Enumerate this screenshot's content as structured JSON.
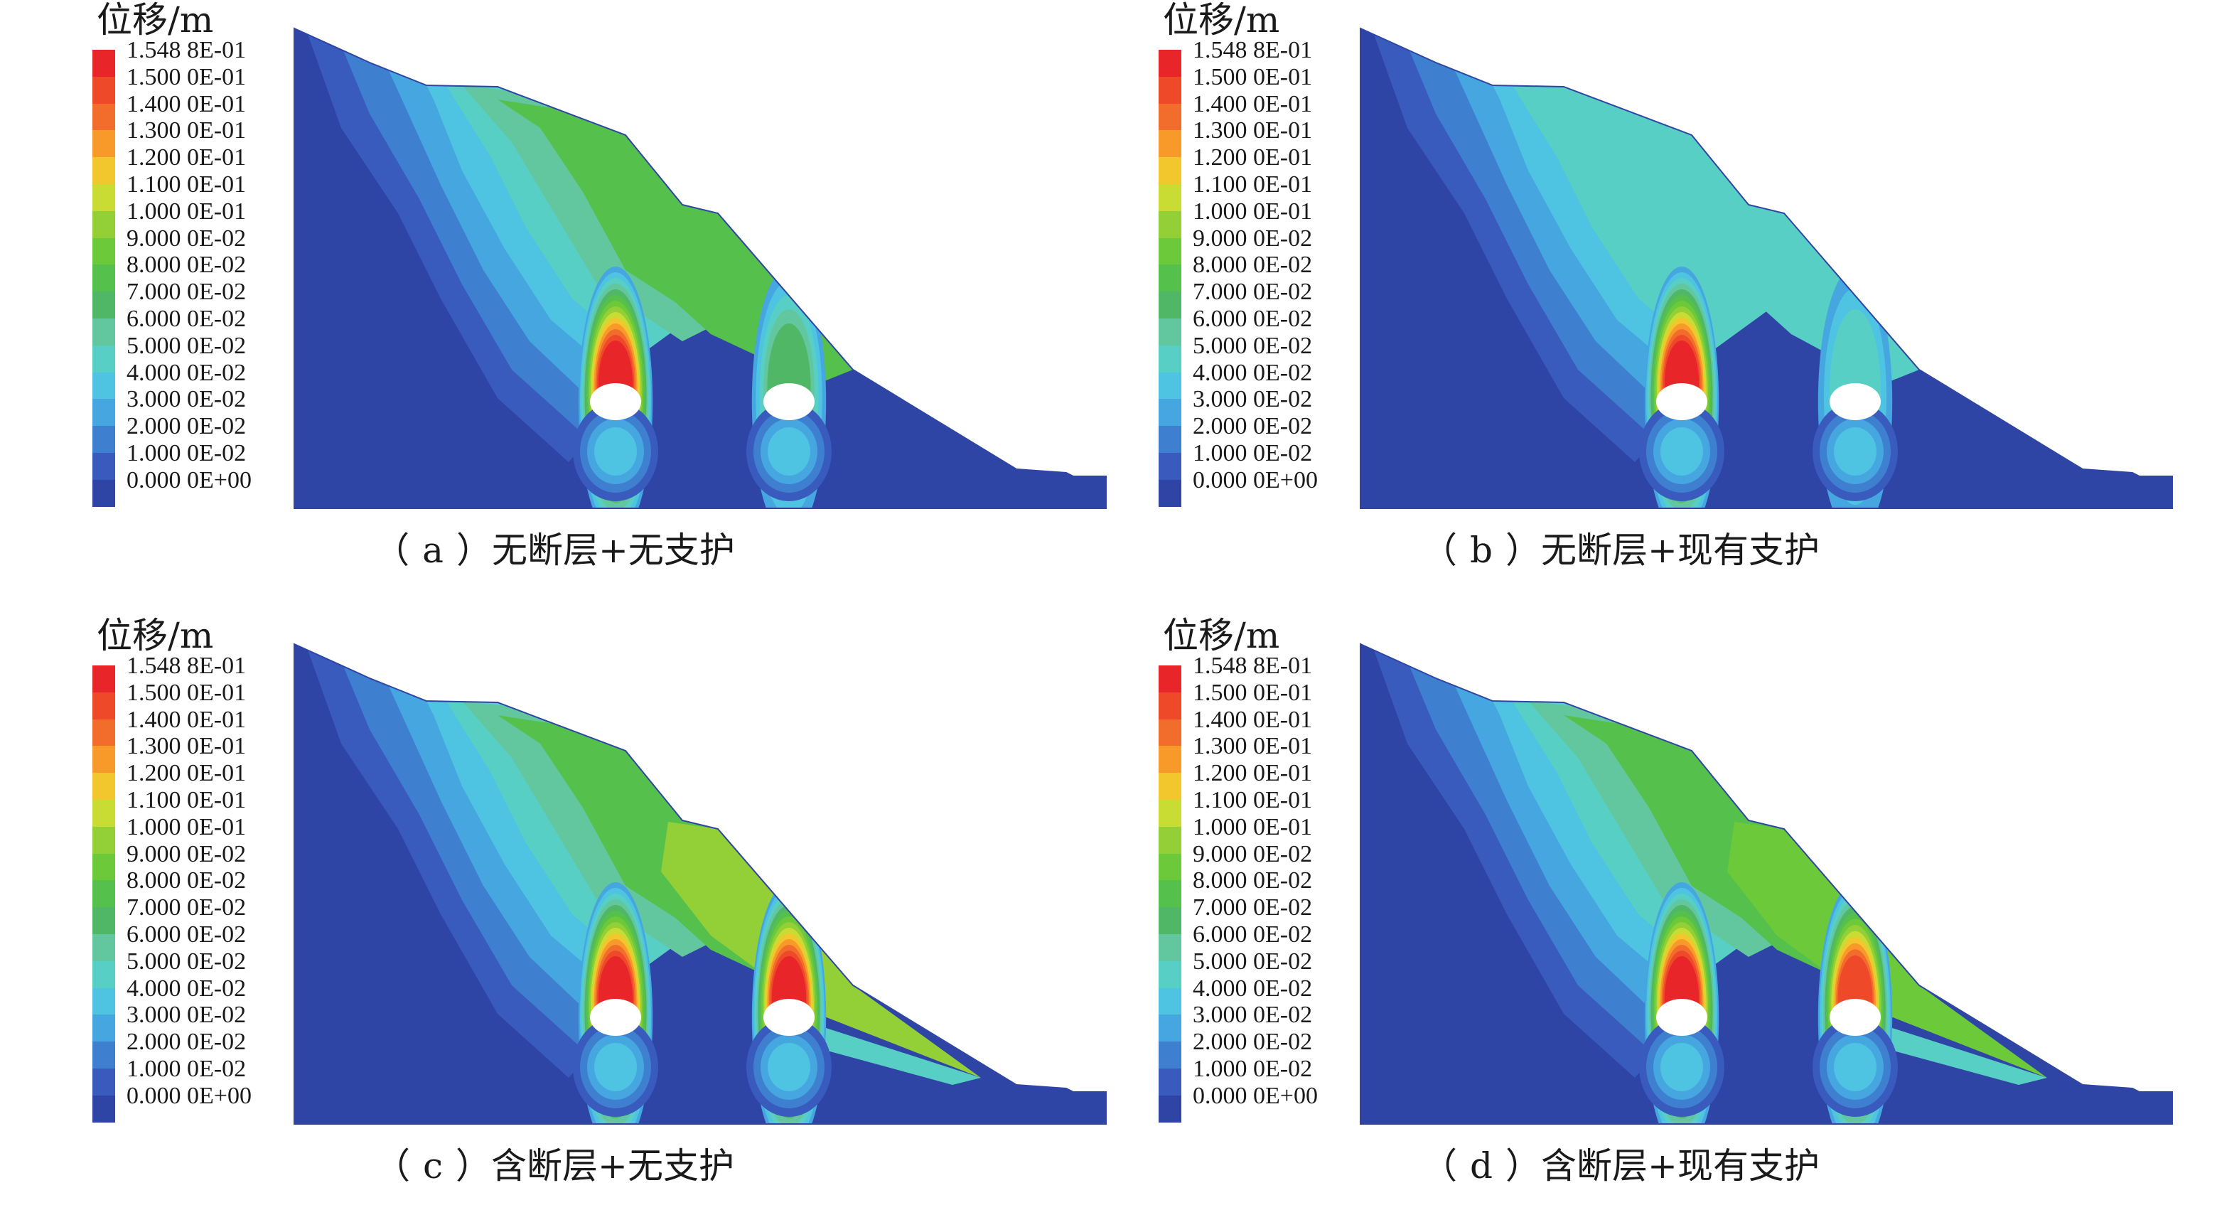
{
  "unit_label": "位移/m",
  "legend": {
    "values": [
      "1.548 8E-01",
      "1.500 0E-01",
      "1.400 0E-01",
      "1.300 0E-01",
      "1.200 0E-01",
      "1.100 0E-01",
      "1.000 0E-01",
      "9.000 0E-02",
      "8.000 0E-02",
      "7.000 0E-02",
      "6.000 0E-02",
      "5.000 0E-02",
      "4.000 0E-02",
      "3.000 0E-02",
      "2.000 0E-02",
      "1.000 0E-02",
      "0.000 0E+00"
    ],
    "colors": [
      "#e8262a",
      "#ee4a2a",
      "#f26c2c",
      "#f79a2a",
      "#f2c72e",
      "#c9dc34",
      "#93cf36",
      "#6cc93a",
      "#56c04c",
      "#4fb766",
      "#62c79f",
      "#58cfc4",
      "#4ec3e2",
      "#45a6e0",
      "#3f7fd0",
      "#385bbd",
      "#2f45a6"
    ]
  },
  "panels": [
    {
      "letter": "a",
      "open": "（",
      "close": "）",
      "caption": "无断层+无支护"
    },
    {
      "letter": "b",
      "open": "（",
      "close": "）",
      "caption": "无断层+现有支护"
    },
    {
      "letter": "c",
      "open": "（",
      "close": "）",
      "caption": "含断层+无支护"
    },
    {
      "letter": "d",
      "open": "（",
      "close": "）",
      "caption": "含断层+现有支护"
    }
  ]
}
